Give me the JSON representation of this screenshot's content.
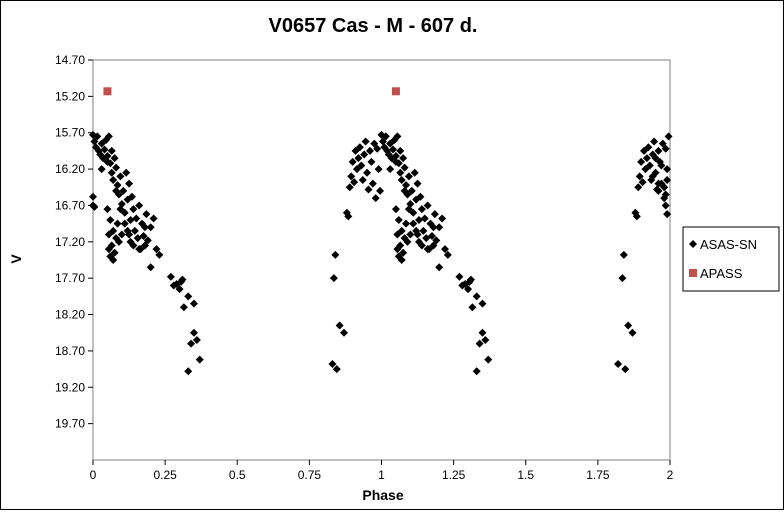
{
  "chart_data": {
    "type": "scatter",
    "title": "V0657 Cas - M - 607 d.",
    "xlabel": "Phase",
    "ylabel": "V",
    "xlim": [
      0,
      2
    ],
    "ylim": [
      14.7,
      20.2
    ],
    "y_inverted": true,
    "grid": false,
    "legend_position": "right",
    "x_ticks": [
      "0",
      "0.25",
      "0.5",
      "0.75",
      "1",
      "1.25",
      "1.5",
      "1.75",
      "2"
    ],
    "x_tick_values": [
      0,
      0.25,
      0.5,
      0.75,
      1,
      1.25,
      1.5,
      1.75,
      2
    ],
    "y_ticks": [
      "14.70",
      "15.20",
      "15.70",
      "16.20",
      "16.70",
      "17.20",
      "17.70",
      "18.20",
      "18.70",
      "19.20",
      "19.70"
    ],
    "y_tick_values": [
      14.7,
      15.2,
      15.7,
      16.2,
      16.7,
      17.2,
      17.7,
      18.2,
      18.7,
      19.2,
      19.7
    ],
    "series": [
      {
        "name": "ASAS-SN",
        "color": "#000000",
        "marker": "diamond",
        "points": [
          [
            0.0,
            15.73
          ],
          [
            0.005,
            15.82
          ],
          [
            0.01,
            15.9
          ],
          [
            0.015,
            15.75
          ],
          [
            0.02,
            15.95
          ],
          [
            0.025,
            16.0
          ],
          [
            0.03,
            15.85
          ],
          [
            0.035,
            16.05
          ],
          [
            0.04,
            15.93
          ],
          [
            0.045,
            15.8
          ],
          [
            0.05,
            16.02
          ],
          [
            0.055,
            15.75
          ],
          [
            0.06,
            16.12
          ],
          [
            0.065,
            16.25
          ],
          [
            0.07,
            16.35
          ],
          [
            0.075,
            16.05
          ],
          [
            0.08,
            16.18
          ],
          [
            0.085,
            16.42
          ],
          [
            0.09,
            16.55
          ],
          [
            0.095,
            16.3
          ],
          [
            0.1,
            16.68
          ],
          [
            0.105,
            16.5
          ],
          [
            0.11,
            16.8
          ],
          [
            0.115,
            16.25
          ],
          [
            0.12,
            16.62
          ],
          [
            0.125,
            16.4
          ],
          [
            0.13,
            16.9
          ],
          [
            0.135,
            16.58
          ],
          [
            0.14,
            16.75
          ],
          [
            0.145,
            17.05
          ],
          [
            0.15,
            16.88
          ],
          [
            0.155,
            17.15
          ],
          [
            0.16,
            16.7
          ],
          [
            0.165,
            17.3
          ],
          [
            0.17,
            16.95
          ],
          [
            0.175,
            17.12
          ],
          [
            0.18,
            17.25
          ],
          [
            0.185,
            16.82
          ],
          [
            0.19,
            17.18
          ],
          [
            0.2,
            17.0
          ],
          [
            0.21,
            16.88
          ],
          [
            0.22,
            17.3
          ],
          [
            0.23,
            17.38
          ],
          [
            0.05,
            16.75
          ],
          [
            0.055,
            17.1
          ],
          [
            0.06,
            16.9
          ],
          [
            0.065,
            17.25
          ],
          [
            0.07,
            17.05
          ],
          [
            0.075,
            17.35
          ],
          [
            0.08,
            17.15
          ],
          [
            0.085,
            16.95
          ],
          [
            0.055,
            17.3
          ],
          [
            0.06,
            17.4
          ],
          [
            0.07,
            17.45
          ],
          [
            0.09,
            17.2
          ],
          [
            0.1,
            17.1
          ],
          [
            0.12,
            17.05
          ],
          [
            0.13,
            17.2
          ],
          [
            0.0,
            16.58
          ],
          [
            0.005,
            16.72
          ],
          [
            0.0,
            16.7
          ],
          [
            0.03,
            16.2
          ],
          [
            0.05,
            16.1
          ],
          [
            0.065,
            15.95
          ],
          [
            0.08,
            16.5
          ],
          [
            0.095,
            16.75
          ],
          [
            0.11,
            16.95
          ],
          [
            0.125,
            17.1
          ],
          [
            0.14,
            17.25
          ],
          [
            0.16,
            17.3
          ],
          [
            0.18,
            17.0
          ],
          [
            0.2,
            17.55
          ],
          [
            0.27,
            17.68
          ],
          [
            0.28,
            17.8
          ],
          [
            0.29,
            17.78
          ],
          [
            0.3,
            17.85
          ],
          [
            0.305,
            17.75
          ],
          [
            0.31,
            17.72
          ],
          [
            0.315,
            18.1
          ],
          [
            0.33,
            17.95
          ],
          [
            0.35,
            18.05
          ],
          [
            0.34,
            18.6
          ],
          [
            0.35,
            18.45
          ],
          [
            0.36,
            18.55
          ],
          [
            0.37,
            18.82
          ],
          [
            0.33,
            18.98
          ],
          [
            0.83,
            18.88
          ],
          [
            0.835,
            17.7
          ],
          [
            0.84,
            17.38
          ],
          [
            0.845,
            18.95
          ],
          [
            0.855,
            18.35
          ],
          [
            0.87,
            18.45
          ],
          [
            0.88,
            16.8
          ],
          [
            0.885,
            16.85
          ],
          [
            0.89,
            16.45
          ],
          [
            0.895,
            16.3
          ],
          [
            0.9,
            16.1
          ],
          [
            0.905,
            16.38
          ],
          [
            0.91,
            15.95
          ],
          [
            0.915,
            16.2
          ],
          [
            0.92,
            16.05
          ],
          [
            0.925,
            15.9
          ],
          [
            0.93,
            16.15
          ],
          [
            0.935,
            16.35
          ],
          [
            0.94,
            16.0
          ],
          [
            0.945,
            15.82
          ],
          [
            0.95,
            16.25
          ],
          [
            0.955,
            16.48
          ],
          [
            0.96,
            15.95
          ],
          [
            0.965,
            16.1
          ],
          [
            0.97,
            16.4
          ],
          [
            0.975,
            15.85
          ],
          [
            0.98,
            16.6
          ],
          [
            0.985,
            15.92
          ],
          [
            0.99,
            16.2
          ],
          [
            0.995,
            16.5
          ],
          [
            1.0,
            15.73
          ],
          [
            1.005,
            15.82
          ],
          [
            1.01,
            15.9
          ],
          [
            1.015,
            15.75
          ],
          [
            1.02,
            15.95
          ],
          [
            1.025,
            16.0
          ],
          [
            1.03,
            15.85
          ],
          [
            1.035,
            16.05
          ],
          [
            1.04,
            15.93
          ],
          [
            1.045,
            15.8
          ],
          [
            1.05,
            16.02
          ],
          [
            1.055,
            15.75
          ],
          [
            1.06,
            16.12
          ],
          [
            1.065,
            16.25
          ],
          [
            1.07,
            16.35
          ],
          [
            1.075,
            16.05
          ],
          [
            1.08,
            16.18
          ],
          [
            1.085,
            16.42
          ],
          [
            1.09,
            16.55
          ],
          [
            1.095,
            16.3
          ],
          [
            1.1,
            16.68
          ],
          [
            1.105,
            16.5
          ],
          [
            1.11,
            16.8
          ],
          [
            1.115,
            16.25
          ],
          [
            1.12,
            16.62
          ],
          [
            1.125,
            16.4
          ],
          [
            1.13,
            16.9
          ],
          [
            1.135,
            16.58
          ],
          [
            1.14,
            16.75
          ],
          [
            1.145,
            17.05
          ],
          [
            1.15,
            16.88
          ],
          [
            1.155,
            17.15
          ],
          [
            1.16,
            16.7
          ],
          [
            1.165,
            17.3
          ],
          [
            1.17,
            16.95
          ],
          [
            1.175,
            17.12
          ],
          [
            1.18,
            17.25
          ],
          [
            1.185,
            16.82
          ],
          [
            1.19,
            17.18
          ],
          [
            1.2,
            17.0
          ],
          [
            1.21,
            16.88
          ],
          [
            1.22,
            17.3
          ],
          [
            1.23,
            17.38
          ],
          [
            1.05,
            16.75
          ],
          [
            1.055,
            17.1
          ],
          [
            1.06,
            16.9
          ],
          [
            1.065,
            17.25
          ],
          [
            1.07,
            17.05
          ],
          [
            1.075,
            17.35
          ],
          [
            1.08,
            17.15
          ],
          [
            1.085,
            16.95
          ],
          [
            1.055,
            17.3
          ],
          [
            1.06,
            17.4
          ],
          [
            1.07,
            17.45
          ],
          [
            1.09,
            17.2
          ],
          [
            1.1,
            17.1
          ],
          [
            1.12,
            17.05
          ],
          [
            1.13,
            17.2
          ],
          [
            1.03,
            16.2
          ],
          [
            1.05,
            16.1
          ],
          [
            1.065,
            15.95
          ],
          [
            1.08,
            16.5
          ],
          [
            1.095,
            16.75
          ],
          [
            1.11,
            16.95
          ],
          [
            1.125,
            17.1
          ],
          [
            1.14,
            17.25
          ],
          [
            1.16,
            17.3
          ],
          [
            1.18,
            17.0
          ],
          [
            1.2,
            17.55
          ],
          [
            1.27,
            17.68
          ],
          [
            1.28,
            17.8
          ],
          [
            1.29,
            17.78
          ],
          [
            1.3,
            17.85
          ],
          [
            1.305,
            17.75
          ],
          [
            1.31,
            17.72
          ],
          [
            1.315,
            18.1
          ],
          [
            1.33,
            17.95
          ],
          [
            1.35,
            18.05
          ],
          [
            1.34,
            18.6
          ],
          [
            1.35,
            18.45
          ],
          [
            1.36,
            18.55
          ],
          [
            1.37,
            18.82
          ],
          [
            1.33,
            18.98
          ],
          [
            1.82,
            18.88
          ],
          [
            1.835,
            17.7
          ],
          [
            1.84,
            17.38
          ],
          [
            1.845,
            18.95
          ],
          [
            1.855,
            18.35
          ],
          [
            1.87,
            18.45
          ],
          [
            1.88,
            16.8
          ],
          [
            1.885,
            16.85
          ],
          [
            1.89,
            16.45
          ],
          [
            1.895,
            16.3
          ],
          [
            1.9,
            16.1
          ],
          [
            1.905,
            16.38
          ],
          [
            1.91,
            15.95
          ],
          [
            1.915,
            16.2
          ],
          [
            1.92,
            16.05
          ],
          [
            1.925,
            15.9
          ],
          [
            1.93,
            16.15
          ],
          [
            1.935,
            16.35
          ],
          [
            1.94,
            16.0
          ],
          [
            1.945,
            15.82
          ],
          [
            1.95,
            16.25
          ],
          [
            1.955,
            16.48
          ],
          [
            1.96,
            15.95
          ],
          [
            1.965,
            16.1
          ],
          [
            1.97,
            16.4
          ],
          [
            1.975,
            15.85
          ],
          [
            1.98,
            16.6
          ],
          [
            1.985,
            15.92
          ],
          [
            1.99,
            16.2
          ],
          [
            1.995,
            15.75
          ],
          [
            1.94,
            16.3
          ],
          [
            1.95,
            16.05
          ],
          [
            1.96,
            16.4
          ],
          [
            1.97,
            16.15
          ],
          [
            1.98,
            16.45
          ],
          [
            1.985,
            16.55
          ],
          [
            1.99,
            16.35
          ],
          [
            1.985,
            16.7
          ],
          [
            1.99,
            16.82
          ],
          [
            1.96,
            16.5
          ]
        ]
      },
      {
        "name": "APASS",
        "color": "#c0504d",
        "marker": "square",
        "points": [
          [
            0.05,
            15.13
          ],
          [
            1.05,
            15.13
          ]
        ]
      }
    ]
  }
}
